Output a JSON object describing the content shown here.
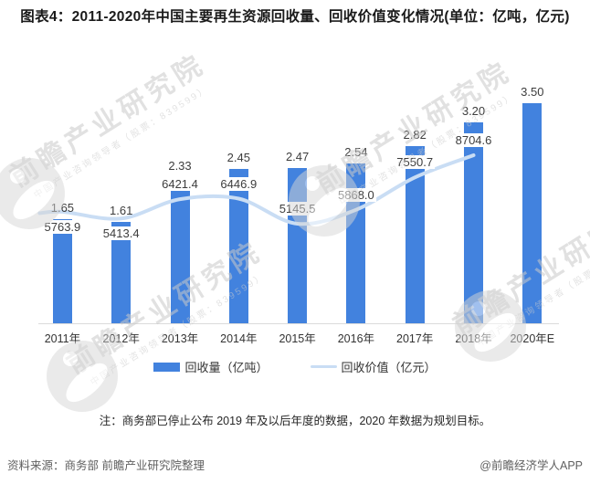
{
  "title": "图表4：2011-2020年中国主要再生资源回收量、回收价值变化情况(单位：亿吨，亿元)",
  "note": "注：商务部已停止公布 2019 年及以后年度的数据，2020 年数据为规划目标。",
  "source_left": "资料来源：商务部 前瞻产业研究院整理",
  "source_right": "@前瞻经济学人APP",
  "watermark": {
    "text_main": "前瞻产业研究院",
    "text_sub": "中国产业咨询领导者（股票：839599）"
  },
  "colors": {
    "bar": "#4282DE",
    "line": "#C9DDF4",
    "axis": "#DBDBDB",
    "value_label": "#3D3D3D",
    "title": "#1A1A1A",
    "source": "#5F5F5F"
  },
  "chart_data": {
    "type": "bar",
    "subtype": "bar+line combo",
    "categories": [
      "2011年",
      "2012年",
      "2013年",
      "2014年",
      "2015年",
      "2016年",
      "2017年",
      "2018年",
      "2020年E"
    ],
    "series": [
      {
        "name": "回收量（亿吨）",
        "type": "bar",
        "values": [
          1.65,
          1.61,
          2.33,
          2.45,
          2.47,
          2.54,
          2.82,
          3.2,
          3.5
        ],
        "labels": [
          "1.65",
          "1.61",
          "2.33",
          "2.45",
          "2.47",
          "2.54",
          "2.82",
          "3.20",
          "3.50"
        ]
      },
      {
        "name": "回收价值（亿元）",
        "type": "line",
        "values": [
          5763.9,
          5413.4,
          6421.4,
          6446.9,
          5145.5,
          5868.0,
          7550.7,
          8704.6,
          null
        ],
        "labels": [
          "5763.9",
          "5413.4",
          "6421.4",
          "6446.9",
          "5145.5",
          "5868.0",
          "7550.7",
          "8704.6",
          ""
        ]
      }
    ],
    "legend": [
      "回收量（亿吨）",
      "回收价值（亿元）"
    ],
    "legend_position": "bottom",
    "grid": false,
    "axes_hidden": true,
    "bar_ylim_implied": [
      0,
      4.0
    ],
    "line_ylim_implied": [
      4500,
      9500
    ]
  }
}
